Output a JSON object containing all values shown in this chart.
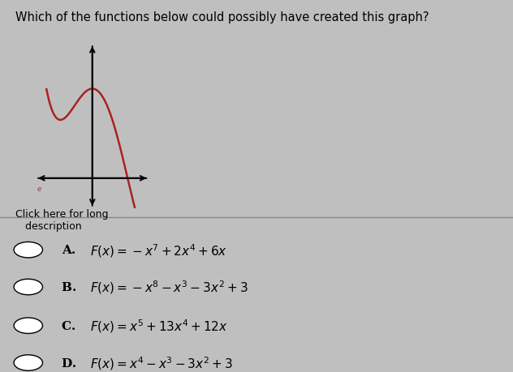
{
  "title": "Which of the functions below could possibly have created this graph?",
  "background_color": "#c0bfbf",
  "graph": {
    "x_range": [
      -1.6,
      1.6
    ],
    "y_range": [
      -1.0,
      4.5
    ],
    "curve_color": "#aa2222",
    "plot_x_min": -1.3,
    "plot_x_max": 1.3
  },
  "options": [
    {
      "label": "A. ",
      "formula": "$F(x)=-x^7+2x^4+6x$"
    },
    {
      "label": "B. ",
      "formula": "$F(x)=-x^8-x^3-3x^2+3$"
    },
    {
      "label": "C. ",
      "formula": "$F(x)=x^5+13x^4+12x$"
    },
    {
      "label": "D. ",
      "formula": "$F(x)=x^4-x^3-3x^2+3$"
    }
  ],
  "click_text": "Click here for long\n   description",
  "question_fontsize": 10.5,
  "option_label_fontsize": 11,
  "option_formula_fontsize": 11,
  "click_fontsize": 9.0,
  "divider_color": "#888888",
  "radio_color": "white",
  "radio_edge_color": "black",
  "text_color": "black"
}
